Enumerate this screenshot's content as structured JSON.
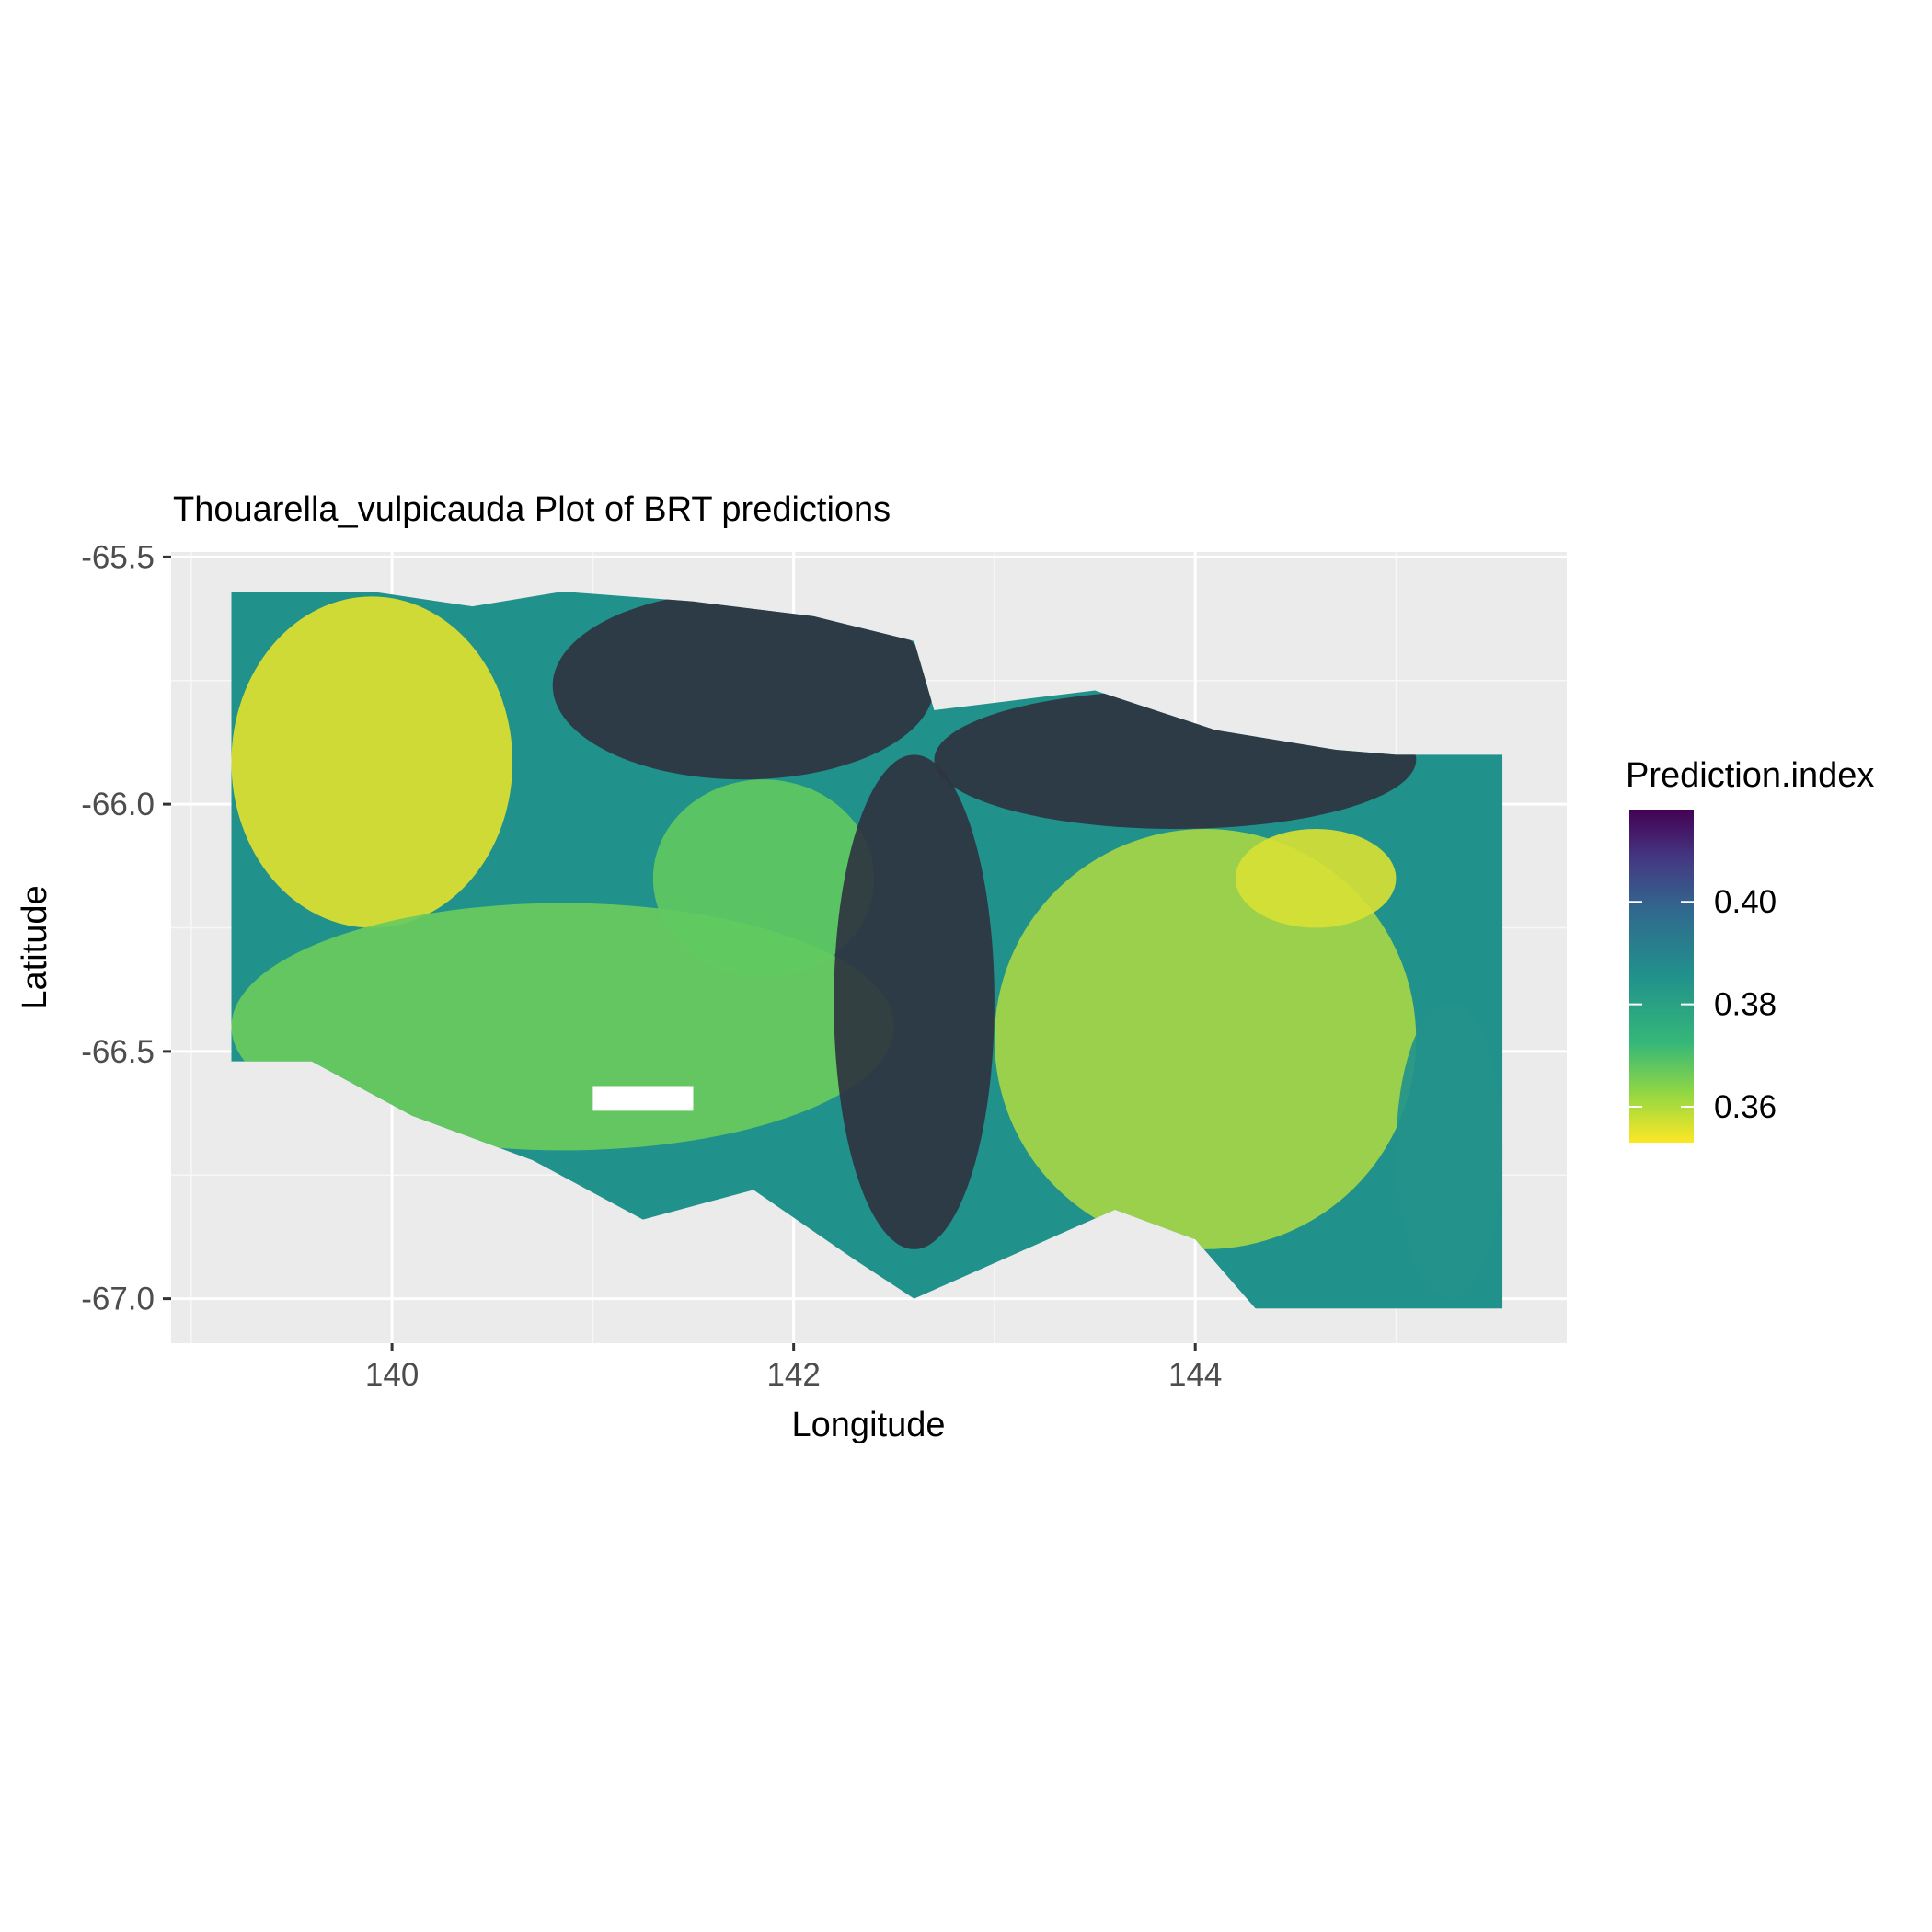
{
  "chart_data": {
    "type": "heatmap",
    "title": "Thouarella_vulpicauda Plot of BRT predictions",
    "xlabel": "Longitude",
    "ylabel": "Latitude",
    "xlim": [
      138.9,
      145.85
    ],
    "ylim": [
      -67.09,
      -65.49
    ],
    "x_ticks": [
      140,
      142,
      144
    ],
    "x_tick_labels": [
      "140",
      "142",
      "144"
    ],
    "y_ticks": [
      -65.5,
      -66.0,
      -66.5,
      -67.0
    ],
    "y_tick_labels": [
      "-65.5",
      "-66.0",
      "-66.5",
      "-67.0"
    ],
    "grid": true,
    "panel_background": "#ebebeb",
    "legend": {
      "title": "Prediction.index",
      "placement": "right",
      "range": [
        0.353,
        0.418
      ],
      "breaks": [
        0.4,
        0.38,
        0.36
      ],
      "break_labels": [
        "0.40",
        "0.38",
        "0.36"
      ],
      "colormap": "viridis (reversed: high = purple, low = yellow)"
    },
    "colors": {
      "low": "#fde725",
      "mid_low": "#5ec962",
      "mid": "#21918c",
      "mid_high": "#3b528b",
      "high": "#440154",
      "dark_region": "#2f3440"
    },
    "extent": {
      "lon_range": [
        139.2,
        145.53
      ],
      "lat_range": [
        -67.02,
        -65.57
      ],
      "outline_lon": [
        139.2,
        139.9,
        140.4,
        140.85,
        141.5,
        142.1,
        142.6,
        142.7,
        143.5,
        144.1,
        144.7,
        145.0,
        145.53,
        145.53,
        145.1,
        144.3,
        144.0,
        143.6,
        142.6,
        142.3,
        141.8,
        141.25,
        140.7,
        140.1,
        139.6,
        139.2
      ],
      "outline_lat": [
        -65.57,
        -65.57,
        -65.6,
        -65.57,
        -65.59,
        -65.62,
        -65.67,
        -65.81,
        -65.77,
        -65.85,
        -65.89,
        -65.9,
        -65.9,
        -67.02,
        -67.02,
        -67.02,
        -66.88,
        -66.82,
        -67.0,
        -66.92,
        -66.78,
        -66.84,
        -66.72,
        -66.63,
        -66.52,
        -66.52
      ],
      "gaps": [
        {
          "lon": [
            141.0,
            141.5
          ],
          "lat": [
            -66.57,
            -66.62
          ]
        }
      ]
    },
    "zones": [
      {
        "label": "west yellow band",
        "value": 0.356,
        "lon": [
          139.2,
          140.6
        ],
        "lat": [
          -65.58,
          -66.25
        ]
      },
      {
        "label": "west green band",
        "value": 0.368,
        "lon": [
          139.2,
          142.5
        ],
        "lat": [
          -66.2,
          -66.7
        ]
      },
      {
        "label": "north dark ridge",
        "value": 0.402,
        "lon": [
          140.8,
          142.7
        ],
        "lat": [
          -65.57,
          -65.95
        ]
      },
      {
        "label": "central green patch",
        "value": 0.369,
        "lon": [
          141.3,
          142.4
        ],
        "lat": [
          -65.95,
          -66.35
        ]
      },
      {
        "label": "central dark trough",
        "value": 0.405,
        "lon": [
          142.2,
          143.0
        ],
        "lat": [
          -65.9,
          -66.9
        ]
      },
      {
        "label": "central-east yellow-green plain",
        "value": 0.362,
        "lon": [
          143.0,
          145.1
        ],
        "lat": [
          -66.05,
          -66.9
        ]
      },
      {
        "label": "east yellow patch",
        "value": 0.357,
        "lon": [
          144.2,
          145.0
        ],
        "lat": [
          -66.05,
          -66.25
        ]
      },
      {
        "label": "northeast dark ridge",
        "value": 0.403,
        "lon": [
          142.7,
          145.1
        ],
        "lat": [
          -65.77,
          -66.05
        ]
      },
      {
        "label": "southeast teal",
        "value": 0.385,
        "lon": [
          145.0,
          145.53
        ],
        "lat": [
          -66.4,
          -67.0
        ]
      }
    ]
  }
}
